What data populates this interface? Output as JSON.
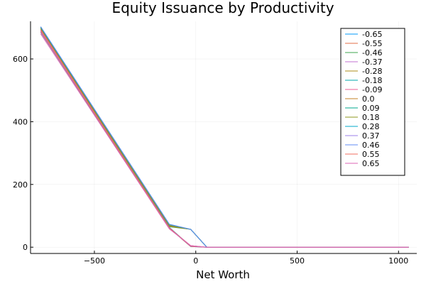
{
  "chart_data": {
    "type": "line",
    "title": "Equity Issuance by Productivity",
    "xlabel": "Net Worth",
    "ylabel": "",
    "xlim": [
      -815,
      1090
    ],
    "ylim": [
      -20,
      720
    ],
    "xticks": [
      -500,
      0,
      500,
      1000
    ],
    "xtick_labels": [
      "−500",
      "0",
      "500",
      "1000"
    ],
    "yticks": [
      0,
      200,
      400,
      600
    ],
    "ytick_labels": [
      "0",
      "200",
      "400",
      "600"
    ],
    "grid": true,
    "legend_position": "top-right",
    "series": [
      {
        "name": "-0.65",
        "color": "#009AFA",
        "x": [
          -765,
          -130,
          -25,
          55,
          1050
        ],
        "y": [
          685,
          60,
          2,
          0,
          0
        ]
      },
      {
        "name": "-0.55",
        "color": "#E36F47",
        "x": [
          -765,
          -130,
          -25,
          55,
          1050
        ],
        "y": [
          686,
          60,
          2,
          0,
          0
        ]
      },
      {
        "name": "-0.46",
        "color": "#3EA44E",
        "x": [
          -765,
          -130,
          -25,
          55,
          1050
        ],
        "y": [
          695,
          65,
          57,
          0,
          0
        ]
      },
      {
        "name": "-0.37",
        "color": "#C271D2",
        "x": [
          -765,
          -130,
          -25,
          55,
          1050
        ],
        "y": [
          688,
          62,
          3,
          0,
          0
        ]
      },
      {
        "name": "-0.28",
        "color": "#AC8E18",
        "x": [
          -765,
          -130,
          -25,
          55,
          1050
        ],
        "y": [
          697,
          67,
          57,
          0,
          0
        ]
      },
      {
        "name": "-0.18",
        "color": "#00A9AD",
        "x": [
          -765,
          -130,
          -25,
          55,
          1050
        ],
        "y": [
          690,
          63,
          3,
          0,
          0
        ]
      },
      {
        "name": "-0.09",
        "color": "#ED5E93",
        "x": [
          -765,
          -130,
          -25,
          55,
          1050
        ],
        "y": [
          689,
          62,
          3,
          0,
          0
        ]
      },
      {
        "name": "0.0",
        "color": "#C68225",
        "x": [
          -765,
          -130,
          -25,
          55,
          1050
        ],
        "y": [
          699,
          68,
          57,
          0,
          0
        ]
      },
      {
        "name": "0.09",
        "color": "#00A98D",
        "x": [
          -765,
          -130,
          -25,
          55,
          1050
        ],
        "y": [
          700,
          70,
          57,
          0,
          0
        ]
      },
      {
        "name": "0.18",
        "color": "#8E971E",
        "x": [
          -765,
          -130,
          -25,
          55,
          1050
        ],
        "y": [
          701,
          70,
          57,
          0,
          0
        ]
      },
      {
        "name": "0.28",
        "color": "#00A8CB",
        "x": [
          -765,
          -130,
          -25,
          55,
          1050
        ],
        "y": [
          702,
          72,
          57,
          0,
          0
        ]
      },
      {
        "name": "0.37",
        "color": "#9B7FE9",
        "x": [
          -765,
          -130,
          -25,
          55,
          1050
        ],
        "y": [
          692,
          60,
          5,
          0,
          0
        ]
      },
      {
        "name": "0.46",
        "color": "#618DF6",
        "x": [
          -765,
          -130,
          -25,
          55,
          1050
        ],
        "y": [
          703,
          73,
          57,
          0,
          0
        ]
      },
      {
        "name": "0.55",
        "color": "#F16C5F",
        "x": [
          -765,
          -130,
          -25,
          55,
          1050
        ],
        "y": [
          693,
          60,
          5,
          0,
          0
        ]
      },
      {
        "name": "0.65",
        "color": "#DD64B5",
        "x": [
          -765,
          -130,
          -25,
          55,
          1050
        ],
        "y": [
          680,
          58,
          5,
          0,
          0
        ]
      }
    ]
  }
}
